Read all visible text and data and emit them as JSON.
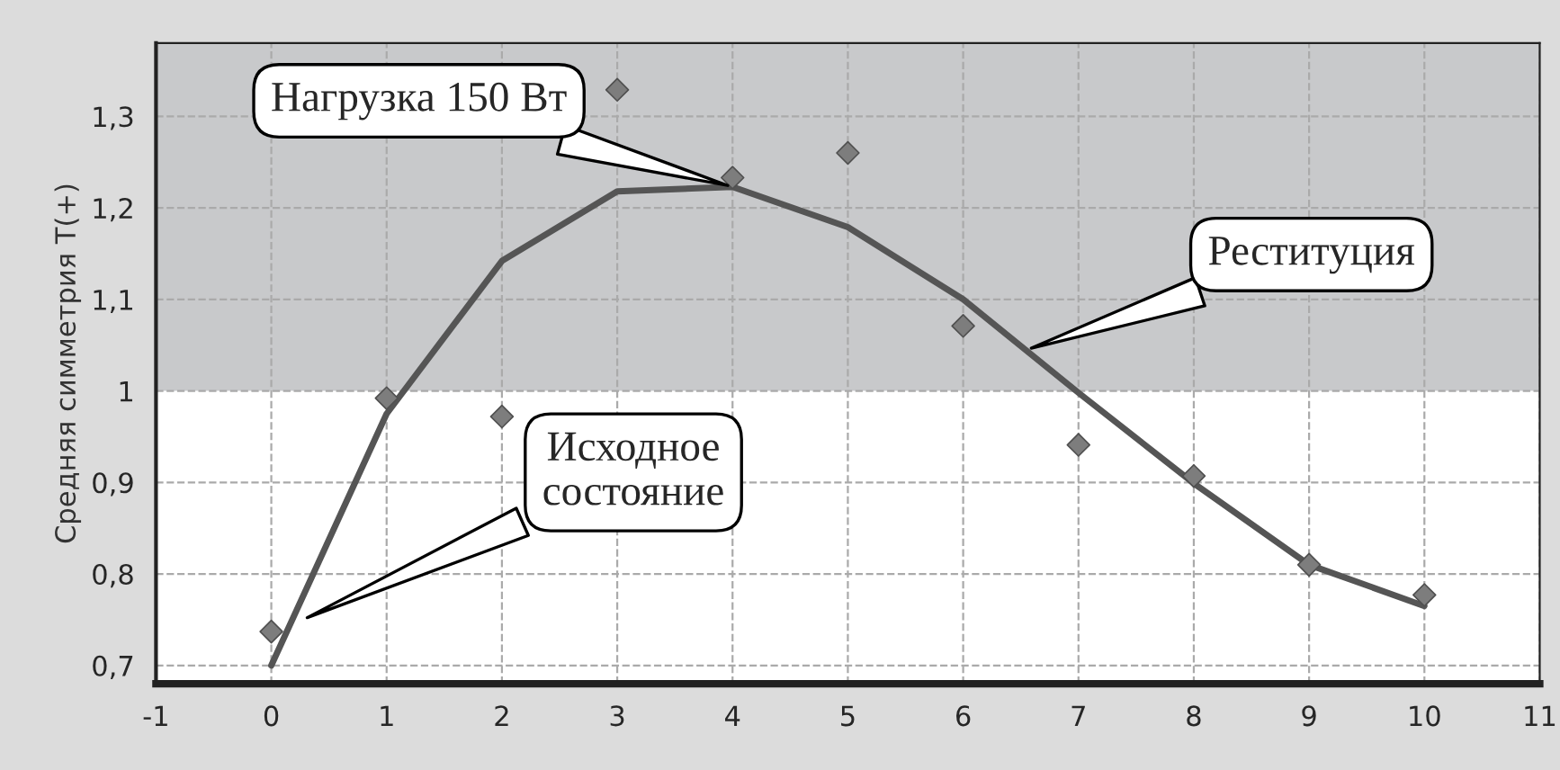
{
  "chart_data": {
    "type": "scatter",
    "ylabel": "Средняя симметрия T(+)",
    "x": [
      0,
      1,
      2,
      3,
      4,
      5,
      6,
      7,
      8,
      9,
      10
    ],
    "series": [
      {
        "color": "#7d7d7d",
        "marker": "diamond",
        "values": [
          0.737,
          0.992,
          0.972,
          1.329,
          1.233,
          1.26,
          1.071,
          0.941,
          0.907,
          0.81,
          0.777
        ]
      },
      {
        "type": "line",
        "color": "#555555",
        "marker": "none",
        "line_style": "solid",
        "values": [
          0.7,
          0.975,
          1.142,
          1.218,
          1.223,
          1.179,
          1.1,
          0.998,
          0.899,
          0.81,
          0.765
        ]
      }
    ],
    "xlim": [
      -1,
      11
    ],
    "xticks": [
      -1,
      0,
      1,
      2,
      3,
      4,
      5,
      6,
      7,
      8,
      9,
      10,
      11
    ],
    "ylim": [
      0.68,
      1.38
    ],
    "yticks": [
      {
        "value": 0.7,
        "label": "0,7"
      },
      {
        "value": 0.8,
        "label": "0,8"
      },
      {
        "value": 0.9,
        "label": "0,9"
      },
      1,
      {
        "value": 1.1,
        "label": "1,1"
      },
      {
        "value": 1.2,
        "label": "1,2"
      },
      {
        "value": 1.3,
        "label": "1,3"
      }
    ],
    "bands": [
      {
        "axis": "y",
        "from": 1,
        "to": 1.38,
        "color": "#c8c9cb"
      }
    ],
    "grid": true,
    "annotations": [
      {
        "text": "Нагрузка 150 Вт",
        "x": 4,
        "y": 1.223
      },
      {
        "text": "Реституция",
        "x": 6.55,
        "y": 1.045
      },
      "Исходное состояние"
    ]
  }
}
